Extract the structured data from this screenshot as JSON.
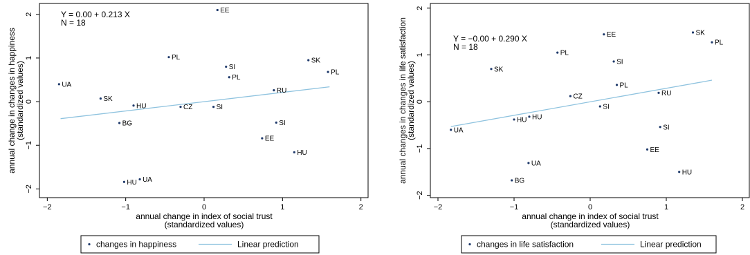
{
  "chart_data": [
    {
      "type": "scatter",
      "title": "",
      "xlabel": [
        "annual change in index of social trust",
        "(standardized values)"
      ],
      "ylabel": [
        "annual change in changes in happiness",
        "(standardized values)"
      ],
      "xlim": [
        -2.1,
        2.1
      ],
      "ylim": [
        -2.2,
        2.25
      ],
      "xticks": [
        -2,
        -1,
        0,
        1,
        2
      ],
      "yticks": [
        -2,
        -1,
        0,
        1,
        2
      ],
      "grid": false,
      "legend_position": "bottom",
      "point_color": "#1f3a6b",
      "line_color": "#8fc3df",
      "annotations": [
        "Y = 0.00 + 0.213 X",
        "N = 18"
      ],
      "legend": [
        {
          "kind": "marker",
          "text": "changes in happiness"
        },
        {
          "kind": "line",
          "text": "Linear prediction"
        }
      ],
      "points": [
        {
          "label": "EE",
          "x": 0.17,
          "y": 2.1
        },
        {
          "label": "PL",
          "x": -0.45,
          "y": 1.02
        },
        {
          "label": "SK",
          "x": 1.33,
          "y": 0.95
        },
        {
          "label": "SI",
          "x": 0.28,
          "y": 0.8
        },
        {
          "label": "PL",
          "x": 1.58,
          "y": 0.68
        },
        {
          "label": "PL",
          "x": 0.32,
          "y": 0.56
        },
        {
          "label": "UA",
          "x": -1.85,
          "y": 0.4
        },
        {
          "label": "RU",
          "x": 0.89,
          "y": 0.26
        },
        {
          "label": "SK",
          "x": -1.32,
          "y": 0.07
        },
        {
          "label": "HU",
          "x": -0.9,
          "y": -0.09
        },
        {
          "label": "CZ",
          "x": -0.3,
          "y": -0.12
        },
        {
          "label": "SI",
          "x": 0.12,
          "y": -0.12
        },
        {
          "label": "SI",
          "x": 0.92,
          "y": -0.48
        },
        {
          "label": "BG",
          "x": -1.08,
          "y": -0.49
        },
        {
          "label": "EE",
          "x": 0.74,
          "y": -0.84
        },
        {
          "label": "HU",
          "x": 1.15,
          "y": -1.16
        },
        {
          "label": "UA",
          "x": -0.82,
          "y": -1.78
        },
        {
          "label": "HU",
          "x": -1.02,
          "y": -1.84
        }
      ],
      "fit_line": {
        "x": [
          -1.83,
          1.6
        ],
        "y": [
          -0.39,
          0.34
        ]
      }
    },
    {
      "type": "scatter",
      "title": "",
      "xlabel": [
        "annual change in index of social trust",
        "(standardized values)"
      ],
      "ylabel": [
        "annual changes in changes in life satisfaction",
        "(standardized values)"
      ],
      "xlim": [
        -2.1,
        2.1
      ],
      "ylim": [
        -2.05,
        2.1
      ],
      "xticks": [
        -2,
        -1,
        0,
        1,
        2
      ],
      "yticks": [
        -2,
        -1,
        0,
        1,
        2
      ],
      "grid": false,
      "legend_position": "bottom",
      "point_color": "#1f3a6b",
      "line_color": "#8fc3df",
      "annotations": [
        "Y = −0.00 + 0.290 X",
        "N = 18"
      ],
      "legend": [
        {
          "kind": "marker",
          "text": "changes in life satisfaction"
        },
        {
          "kind": "line",
          "text": "Linear prediction"
        }
      ],
      "points": [
        {
          "label": "SK",
          "x": 1.35,
          "y": 1.48
        },
        {
          "label": "EE",
          "x": 0.18,
          "y": 1.44
        },
        {
          "label": "PL",
          "x": 1.6,
          "y": 1.27
        },
        {
          "label": "PL",
          "x": -0.43,
          "y": 1.05
        },
        {
          "label": "SI",
          "x": 0.31,
          "y": 0.86
        },
        {
          "label": "SK",
          "x": -1.3,
          "y": 0.7
        },
        {
          "label": "PL",
          "x": 0.35,
          "y": 0.36
        },
        {
          "label": "RU",
          "x": 0.9,
          "y": 0.19
        },
        {
          "label": "CZ",
          "x": -0.26,
          "y": 0.12
        },
        {
          "label": "SI",
          "x": 0.13,
          "y": -0.1
        },
        {
          "label": "HU",
          "x": -0.8,
          "y": -0.32
        },
        {
          "label": "HU",
          "x": -1.0,
          "y": -0.38
        },
        {
          "label": "UA",
          "x": -1.83,
          "y": -0.6
        },
        {
          "label": "SI",
          "x": 0.92,
          "y": -0.54
        },
        {
          "label": "EE",
          "x": 0.75,
          "y": -1.02
        },
        {
          "label": "UA",
          "x": -0.81,
          "y": -1.31
        },
        {
          "label": "HU",
          "x": 1.17,
          "y": -1.5
        },
        {
          "label": "BG",
          "x": -1.03,
          "y": -1.68
        }
      ],
      "fit_line": {
        "x": [
          -1.83,
          1.6
        ],
        "y": [
          -0.53,
          0.46
        ]
      }
    }
  ]
}
